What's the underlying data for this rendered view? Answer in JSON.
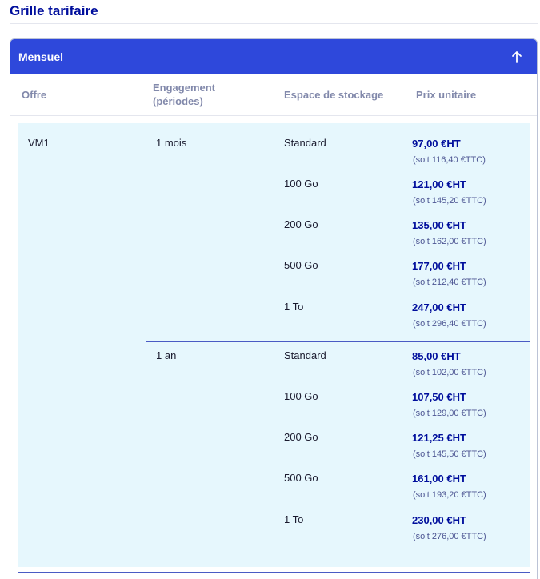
{
  "page": {
    "title": "Grille tarifaire"
  },
  "card": {
    "header_label": "Mensuel",
    "toggle_icon": "arrow-up-icon",
    "accent": "#2e48db"
  },
  "columns": {
    "offre": "Offre",
    "engagement_line1": "Engagement",
    "engagement_line2": "(périodes)",
    "stockage": "Espace de stockage",
    "prix": "Prix unitaire"
  },
  "offer": {
    "name": "VM1",
    "groups": [
      {
        "engagement": "1 mois",
        "rows": [
          {
            "storage": "Standard",
            "ht": "97,00 €HT",
            "ttc": "(soit 116,40 €TTC)"
          },
          {
            "storage": "100 Go",
            "ht": "121,00 €HT",
            "ttc": "(soit 145,20 €TTC)"
          },
          {
            "storage": "200 Go",
            "ht": "135,00 €HT",
            "ttc": "(soit 162,00 €TTC)"
          },
          {
            "storage": "500 Go",
            "ht": "177,00 €HT",
            "ttc": "(soit 212,40 €TTC)"
          },
          {
            "storage": "1 To",
            "ht": "247,00 €HT",
            "ttc": "(soit 296,40 €TTC)"
          }
        ]
      },
      {
        "engagement": "1 an",
        "rows": [
          {
            "storage": "Standard",
            "ht": "85,00 €HT",
            "ttc": "(soit 102,00 €TTC)"
          },
          {
            "storage": "100 Go",
            "ht": "107,50 €HT",
            "ttc": "(soit 129,00 €TTC)"
          },
          {
            "storage": "200 Go",
            "ht": "121,25 €HT",
            "ttc": "(soit 145,50 €TTC)"
          },
          {
            "storage": "500 Go",
            "ht": "161,00 €HT",
            "ttc": "(soit 193,20 €TTC)"
          },
          {
            "storage": "1 To",
            "ht": "230,00 €HT",
            "ttc": "(soit 276,00 €TTC)"
          }
        ]
      }
    ]
  }
}
